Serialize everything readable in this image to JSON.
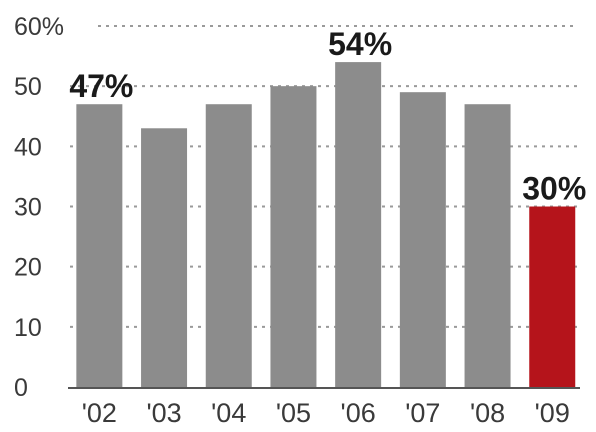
{
  "chart_data": {
    "type": "bar",
    "title": "",
    "xlabel": "",
    "ylabel": "",
    "categories": [
      "'02",
      "'03",
      "'04",
      "'05",
      "'06",
      "'07",
      "'08",
      "'09"
    ],
    "values": [
      47,
      43,
      47,
      50,
      54,
      49,
      47,
      30
    ],
    "ylim": [
      0,
      60
    ],
    "yticks": [
      {
        "value": 0,
        "label": "0"
      },
      {
        "value": 10,
        "label": "10"
      },
      {
        "value": 20,
        "label": "20"
      },
      {
        "value": 30,
        "label": "30"
      },
      {
        "value": 40,
        "label": "40"
      },
      {
        "value": 50,
        "label": "50"
      },
      {
        "value": 60,
        "label": "60%"
      }
    ],
    "data_labels": [
      {
        "index": 0,
        "text": "47%"
      },
      {
        "index": 4,
        "text": "54%"
      },
      {
        "index": 7,
        "text": "30%"
      }
    ],
    "grid": true,
    "colors": {
      "bar": "#8c8c8c",
      "highlight_bar": "#b5141b"
    },
    "highlight_index": 7
  }
}
